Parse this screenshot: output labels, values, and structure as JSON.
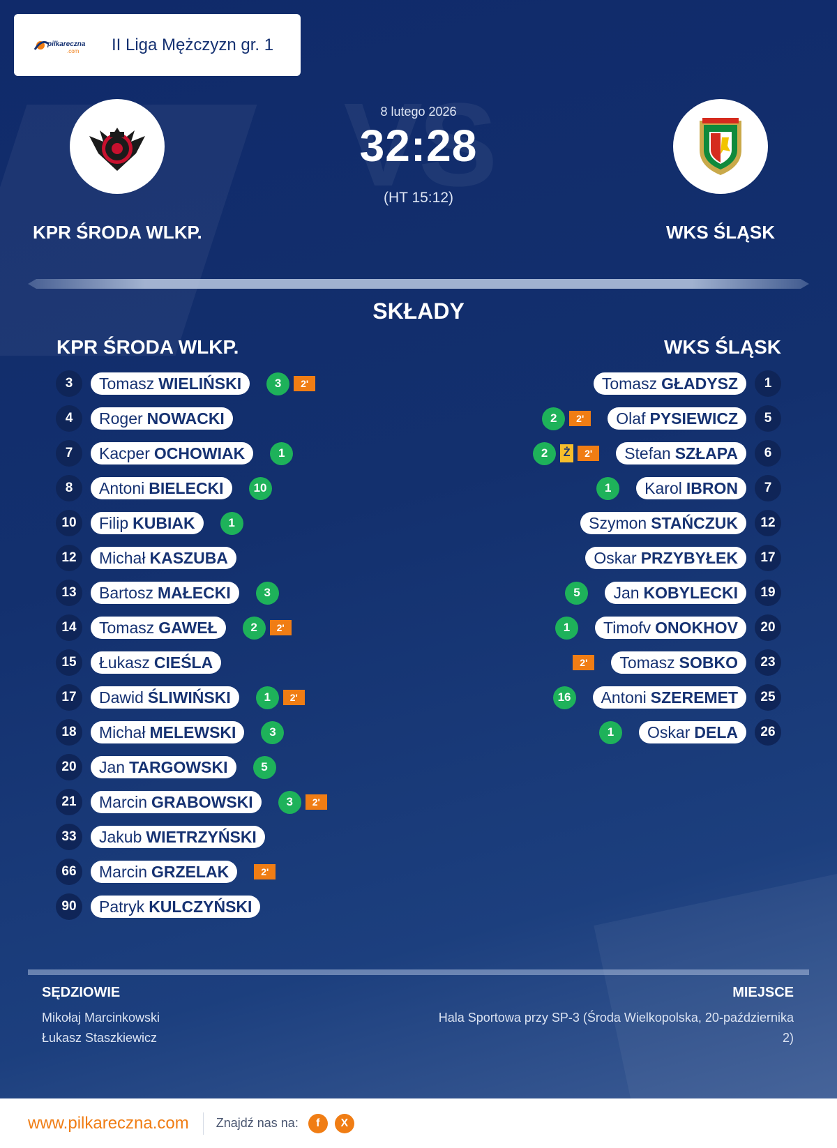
{
  "league": {
    "logo_text": "pilkareczna",
    "logo_subtext": ".com",
    "name": "II Liga Mężczyzn gr. 1"
  },
  "match": {
    "date": "8 lutego 2026",
    "score": "32:28",
    "half_time": "(HT 15:12)",
    "vs_text": "VS"
  },
  "home_team": {
    "name": "KPR ŚRODA WLKP.",
    "crest_icon": "kpr-sroda-crest-icon",
    "players": [
      {
        "number": "3",
        "first": "Tomasz",
        "last": "WIELIŃSKI",
        "goals": "3",
        "suspensions": [
          "2'"
        ],
        "yellow": false
      },
      {
        "number": "4",
        "first": "Roger",
        "last": "NOWACKI",
        "goals": "",
        "suspensions": [],
        "yellow": false
      },
      {
        "number": "7",
        "first": "Kacper",
        "last": "OCHOWIAK",
        "goals": "1",
        "suspensions": [],
        "yellow": false
      },
      {
        "number": "8",
        "first": "Antoni",
        "last": "BIELECKI",
        "goals": "10",
        "suspensions": [],
        "yellow": false
      },
      {
        "number": "10",
        "first": "Filip",
        "last": "KUBIAK",
        "goals": "1",
        "suspensions": [],
        "yellow": false
      },
      {
        "number": "12",
        "first": "Michał",
        "last": "KASZUBA",
        "goals": "",
        "suspensions": [],
        "yellow": false
      },
      {
        "number": "13",
        "first": "Bartosz",
        "last": "MAŁECKI",
        "goals": "3",
        "suspensions": [],
        "yellow": false
      },
      {
        "number": "14",
        "first": "Tomasz",
        "last": "GAWEŁ",
        "goals": "2",
        "suspensions": [
          "2'"
        ],
        "yellow": false
      },
      {
        "number": "15",
        "first": "Łukasz",
        "last": "CIEŚLA",
        "goals": "",
        "suspensions": [],
        "yellow": false
      },
      {
        "number": "17",
        "first": "Dawid",
        "last": "ŚLIWIŃSKI",
        "goals": "1",
        "suspensions": [
          "2'"
        ],
        "yellow": false
      },
      {
        "number": "18",
        "first": "Michał",
        "last": "MELEWSKI",
        "goals": "3",
        "suspensions": [],
        "yellow": false
      },
      {
        "number": "20",
        "first": "Jan",
        "last": "TARGOWSKI",
        "goals": "5",
        "suspensions": [],
        "yellow": false
      },
      {
        "number": "21",
        "first": "Marcin",
        "last": "GRABOWSKI",
        "goals": "3",
        "suspensions": [
          "2'"
        ],
        "yellow": false
      },
      {
        "number": "33",
        "first": "Jakub",
        "last": "WIETRZYŃSKI",
        "goals": "",
        "suspensions": [],
        "yellow": false
      },
      {
        "number": "66",
        "first": "Marcin",
        "last": "GRZELAK",
        "goals": "",
        "suspensions": [
          "2'"
        ],
        "yellow": false
      },
      {
        "number": "90",
        "first": "Patryk",
        "last": "KULCZYŃSKI",
        "goals": "",
        "suspensions": [],
        "yellow": false
      }
    ]
  },
  "away_team": {
    "name": "WKS ŚLĄSK",
    "crest_icon": "slask-crest-icon",
    "players": [
      {
        "number": "1",
        "first": "Tomasz",
        "last": "GŁADYSZ",
        "goals": "",
        "suspensions": [],
        "yellow": false
      },
      {
        "number": "5",
        "first": "Olaf",
        "last": "PYSIEWICZ",
        "goals": "2",
        "suspensions": [
          "2'"
        ],
        "yellow": false
      },
      {
        "number": "6",
        "first": "Stefan",
        "last": "SZŁAPA",
        "goals": "2",
        "suspensions": [
          "2'"
        ],
        "yellow": true
      },
      {
        "number": "7",
        "first": "Karol",
        "last": "IBRON",
        "goals": "1",
        "suspensions": [],
        "yellow": false
      },
      {
        "number": "12",
        "first": "Szymon",
        "last": "STAŃCZUK",
        "goals": "",
        "suspensions": [],
        "yellow": false
      },
      {
        "number": "17",
        "first": "Oskar",
        "last": "PRZYBYŁEK",
        "goals": "",
        "suspensions": [],
        "yellow": false
      },
      {
        "number": "19",
        "first": "Jan",
        "last": "KOBYLECKI",
        "goals": "5",
        "suspensions": [],
        "yellow": false
      },
      {
        "number": "20",
        "first": "Timofv",
        "last": "ONOKHOV",
        "goals": "1",
        "suspensions": [],
        "yellow": false
      },
      {
        "number": "23",
        "first": "Tomasz",
        "last": "SOBKO",
        "goals": "",
        "suspensions": [
          "2'"
        ],
        "yellow": false
      },
      {
        "number": "25",
        "first": "Antoni",
        "last": "SZEREMET",
        "goals": "16",
        "suspensions": [],
        "yellow": false
      },
      {
        "number": "26",
        "first": "Oskar",
        "last": "DELA",
        "goals": "1",
        "suspensions": [],
        "yellow": false
      }
    ]
  },
  "labels": {
    "lineups": "SKŁADY",
    "referees": "SĘDZIOWIE",
    "venue": "MIEJSCE",
    "yellow_card": "Ż",
    "find_us": "Znajdź nas na:"
  },
  "referees": [
    "Mikołaj Marcinkowski",
    "Łukasz Staszkiewicz"
  ],
  "venue": "Hala Sportowa przy SP-3 (Środa Wielkopolska, 20-października 2)",
  "footer": {
    "website": "www.pilkareczna.com",
    "social": [
      {
        "icon": "facebook-icon",
        "glyph": "f"
      },
      {
        "icon": "x-icon",
        "glyph": "X"
      }
    ]
  },
  "colors": {
    "background_top": "#102a6a",
    "background_bottom": "#3c5c95",
    "goal_badge": "#1eb25a",
    "suspension_badge": "#f07d14",
    "yellow_card": "#f6be2c",
    "number_badge": "#0f2558",
    "accent": "#f07d14"
  }
}
